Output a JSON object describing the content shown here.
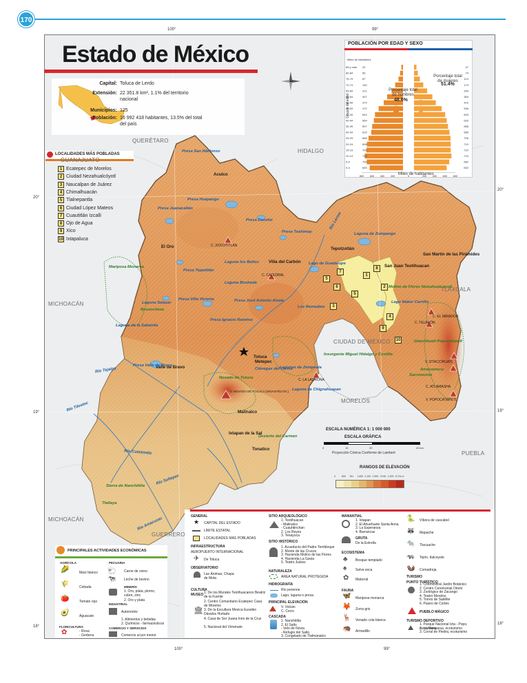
{
  "page": {
    "number": "170"
  },
  "title": "Estado de México",
  "coords": {
    "top": [
      "100°",
      "99°"
    ],
    "bottom": [
      "100°",
      "99°"
    ],
    "left": [
      "20°",
      "19°",
      "18°"
    ],
    "right": [
      "20°",
      "19°",
      "18°"
    ]
  },
  "info": {
    "rows": [
      {
        "k": "Capital:",
        "v": "Toluca de Lerdo"
      },
      {
        "k": "Extensión:",
        "v": "22 351.8 km², 1.1% del territorio nacional"
      },
      {
        "k": "Municipios:",
        "v": "125"
      },
      {
        "k": "Población:",
        "v": "16 992 418 habitantes, 13.5% del total del país"
      }
    ]
  },
  "localidades": {
    "title": "LOCALIDADES MÁS POBLADAS",
    "items": [
      {
        "n": "1",
        "name": "Ecatepec de Morelos"
      },
      {
        "n": "2",
        "name": "Ciudad Nezahualcóyotl"
      },
      {
        "n": "3",
        "name": "Naucalpan de Juárez"
      },
      {
        "n": "4",
        "name": "Chimalhuacán"
      },
      {
        "n": "5",
        "name": "Tlalnepantla"
      },
      {
        "n": "6",
        "name": "Ciudad López Mateos"
      },
      {
        "n": "7",
        "name": "Cuautitlán Izcalli"
      },
      {
        "n": "8",
        "name": "Ojo de Agua"
      },
      {
        "n": "9",
        "name": "Xico"
      },
      {
        "n": "10",
        "name": "Ixtapaluca"
      }
    ]
  },
  "pyramid": {
    "title": "POBLACIÓN POR EDAD Y SEXO",
    "miles_label": "Miles de habitantes",
    "men_label": "Porcentaje total de hombres",
    "men_pct": "48.6%",
    "women_label": "Porcentaje total de mujeres",
    "women_pct": "51.4%",
    "axis_title": "Grupos de edad",
    "axis_ticks": [
      "800",
      "600",
      "400",
      "200",
      "0",
      "200",
      "400",
      "600",
      "800"
    ],
    "groups": [
      {
        "age": "85 y más",
        "m": 32,
        "f": 47
      },
      {
        "age": "80-84",
        "m": 56,
        "f": 74
      },
      {
        "age": "75-79",
        "m": 87,
        "f": 113
      },
      {
        "age": "70-74",
        "m": 152,
        "f": 179
      },
      {
        "age": "65-69",
        "m": 221,
        "f": 254
      },
      {
        "age": "60-64",
        "m": 307,
        "f": 354
      },
      {
        "age": "55-59",
        "m": 374,
        "f": 422
      },
      {
        "age": "50-54",
        "m": 472,
        "f": 536
      },
      {
        "age": "45-49",
        "m": 543,
        "f": 603
      },
      {
        "age": "40-44",
        "m": 564,
        "f": 633
      },
      {
        "age": "35-39",
        "m": 597,
        "f": 658
      },
      {
        "age": "30-34",
        "m": 615,
        "f": 686
      },
      {
        "age": "25-29",
        "m": 668,
        "f": 706
      },
      {
        "age": "20-24",
        "m": 698,
        "f": 710
      },
      {
        "age": "15-19",
        "m": 706,
        "f": 710
      },
      {
        "age": "10-14",
        "m": 740,
        "f": 724
      },
      {
        "age": "5-9",
        "m": 700,
        "f": 682
      },
      {
        "age": "0-4",
        "m": 645,
        "f": 632
      }
    ]
  },
  "states": {
    "guanajuato": "GUANAJUATO",
    "queretaro": "QUERÉTARO",
    "hidalgo": "HIDALGO",
    "tlaxcala": "TLAXCALA",
    "michoacan1": "MICHOACÁN",
    "michoacan2": "MICHOACÁN",
    "cdmx": "CIUDAD DE MÉXICO",
    "morelos": "MORELOS",
    "puebla": "PUEBLA",
    "guerrero": "GUERRERO"
  },
  "cities": {
    "toluca": "Toluca",
    "metepec": "Metepec",
    "el_oro": "El Oro",
    "villa_carbon": "Villa del Carbón",
    "tepotzotlan": "Tepotzotlán",
    "san_juan": "San Juan Teotihuacan",
    "san_martin": "San Martín de las Pirámides",
    "valle_bravo": "Valle de Bravo",
    "malinalco": "Malinalco",
    "ixtapan": "Ixtapan de la Sal",
    "tonatico": "Tonatico",
    "aculco": "Aculco"
  },
  "peaks": {
    "xocotitlan": "C. XOCOTITLÁN",
    "catedral": "C. CATEDRAL",
    "ladrona": "C. LA LADRONA",
    "mirador": "C. EL MIRADOR",
    "telapon": "C. TELAPÓN",
    "iztaccihuatl_v": "V. IZTACCÍHUATL",
    "atlamasha": "C. ATLAMASHA",
    "popocatepetl_v": "V. POPOCATÉPETL",
    "nevado_v": "V. NEVADO DE TOLUCA (XINANTÉCATL)"
  },
  "waters": {
    "ildefonso": "Presa San Ildefonso",
    "huapango": "Presa Huapango",
    "danxho": "Presa Danxhó",
    "taxhimay": "Presa Taxhimay",
    "juanacatlan": "Presa Juanacatlán",
    "banos": "Laguna los Baños",
    "tepetitlan": "Presa Tepetitlán",
    "bosheda": "Laguna Bosheda",
    "brockman": "Presa Brockman",
    "victoria": "Presa Villa Victoria",
    "alzate": "Presa José Antonio Alzate",
    "ramirez": "Presa Ignacio Ramírez",
    "zumpango": "Laguna de Zumpango",
    "guadalupe": "Lago de Guadalupe",
    "remedios": "Los Remedios",
    "texcoco": "Lago Nabor Carrillo",
    "chignahuapan": "Laguna de Chignahuapan",
    "lerma": "Ciénegas del Lerma",
    "zempoala": "Lagunas de Zempoala",
    "valle_bravo_p": "Presa Valle de Bravo",
    "salazar": "Laguna Salazar",
    "sabanita": "Laguna de la Sabanita",
    "rio_lerma": "Río Lerma",
    "rio_tejalpa": "Río Tejalpa",
    "rio_tilostoc": "Río Tilostoc",
    "rio_cutzamala": "Río Cutzamala",
    "rio_sultepec": "Río Sultepec",
    "rio_amacuzac": "Río Amacuzac"
  },
  "protected": {
    "bosencheve": "Bosencheve",
    "izta_popo": "Iztaccíhuatl-Popocatépetl",
    "sacromonte": "Sacromonte",
    "tenancingo": "Tenancingo",
    "insurgente": "Insurgente Miguel Hidalgo y Costilla",
    "monarca": "Mariposa Monarca",
    "desierto": "Desierto del Carmen",
    "nevado": "Nevado de Toluca",
    "amecameca": "Amecameca",
    "molino": "Molino de Flores Netzahualcóyotl",
    "xicotepec": "Sierra de Nanchititla",
    "tetla": "Tlatlaya"
  },
  "scale": {
    "title": "ESCALA NUMÉRICA 1: 1 000 000",
    "graphic": "ESCALA GRÁFICA",
    "ticks": [
      "0",
      "10",
      "20",
      "40 km"
    ],
    "projection": "Proyección Cónica Conforme de Lambert",
    "elev_title": "RANGOS DE ELEVACIÓN",
    "elev_ticks": [
      "0",
      "500",
      "751",
      "1 600",
      "2 100",
      "2 900",
      "3 000",
      "4 200",
      "5 701 m"
    ],
    "elev_colors": [
      "#f6efc8",
      "#efe3a8",
      "#e9d08a",
      "#e5b66a",
      "#e09852",
      "#d9733a",
      "#d85a2a",
      "#c93c20",
      "#b52a18"
    ]
  },
  "legend": {
    "general": "GENERAL",
    "capital": "CAPITAL DEL ESTADO",
    "limite": "LÍMITE ESTATAL",
    "localidades": "LOCALIDADES MÁS POBLADAS",
    "infra": "INFRAESTRUCTURA",
    "aeropuerto": "AEROPUERTO INTERNACIONAL",
    "aeropuerto_v": "De Toluca",
    "observatorio": "OBSERVATORIO",
    "observatorio_v": "Las Ánimas, Chapa de Mota",
    "cultura": "CULTURA",
    "museo": "MUSEO",
    "museos": [
      "1. De los Murales Teotihuacanos Beatriz de la Fuente",
      "2. Centro Comunitario Ecatepec Casa de Morelos",
      "3. De la Escultura Mexica Eusebio Dávalos Hurtado",
      "4. Casa de Sor Juana Inés de la Cruz",
      "5. Nacional del Virreinato"
    ],
    "sitio_arq": "SITIO ARQUEOLÓGICO",
    "sitios_arq": [
      "1. Teotihuacan",
      "- Malinalco",
      "- Cuauhtinchan",
      "2. Los Reyes",
      "3. Tenayuca"
    ],
    "sitio_hist": "SITIO HISTÓRICO",
    "sitios_hist": [
      "1. Acueducto del Padre Tembleque",
      "2. Monte de las Cruces",
      "3. Hacienda Molino de las Flores",
      "4. Hacienda La Gavia",
      "5. Teatro Juárez"
    ],
    "naturaleza": "NATURALEZA",
    "anp": "ÁREA NATURAL PROTEGIDA",
    "hidrografia": "HIDROGRAFÍA",
    "rio": "Río perenne",
    "lago": "Lago, laguna o presa",
    "elevacion": "PRINCIPAL ELEVACIÓN",
    "volcan": "V. Volcán",
    "cerro": "C. Cerro",
    "cascada": "CASCADA",
    "cascadas": [
      "1. Nanchititla",
      "2. El Salto",
      "- Velo de Novia",
      "- Refugio del Salto",
      "3. Congelado de Tlalmanalco"
    ],
    "manantial": "MANANTIAL",
    "manantiales": [
      "1. Ixtapan",
      "2. El Ahuehuete Santa Anna",
      "3. La Esperanza",
      "4. Barrancas"
    ],
    "gruta": "GRUTA",
    "gruta_v": "De la Estrella",
    "ecosistema": "ECOSISTEMA",
    "bosque": "Bosque templado",
    "selva": "Selva seca",
    "matorral": "Matorral",
    "fauna": "FAUNA",
    "fauna_items": [
      "Mariposa monarca",
      "Zorra gris",
      "Venado cola blanca",
      "Armadillo"
    ],
    "fauna_items2": [
      "Víbora de cascabel",
      "Mapache",
      "Tlacuache",
      "Tejón, tlalcoyote",
      "Comadreja"
    ],
    "turismo": "TURISMO",
    "punto": "PUNTO TURÍSTICO",
    "puntos": [
      "1. Cosmovitral Jardín Botánico",
      "2. Centro Ceremonial Otomí",
      "3. Zoológico de Zacango",
      "4. Teatro Morelos",
      "5. Torres de Satélite",
      "6. Paseo de Cortés"
    ],
    "pueblo": "PUEBLO MÁGICO",
    "deportivo": "TURISMO DEPORTIVO",
    "deportivos": [
      "1. Parque Nacional Izta - Popo, ecoturismo",
      "2. La Marquesa, ecoturismo",
      "3. Corral de Piedra, ecoturismo"
    ]
  },
  "actividades": {
    "title": "PRINCIPALES ACTIVIDADES ECONÓMICAS",
    "agricola": "AGRÍCOLA",
    "agricola_items": [
      "Maíz blanco",
      "Cebada",
      "Tomate rojo",
      "Aguacate"
    ],
    "pecuaria": "PECUARIA",
    "pecuaria_items": [
      "Carne de ovino",
      "Leche de bovino"
    ],
    "mineria": "MINERÍA",
    "mineria_items": [
      "1. Oro, plata, plomo, cobre, zinc",
      "2. Oro y plata"
    ],
    "industrial": "INDUSTRIAL",
    "industrial_items": [
      "Automotriz",
      "1. Alimentos y bebidas",
      "2. Químicos - farmacéuticos"
    ],
    "floricultura": "FLORICULTURA",
    "flores": [
      "- Rosa",
      "- Gerbera"
    ],
    "comercio": "COMERCIO Y SERVICIOS",
    "comercio_v": "Comercio al por menor"
  },
  "colors": {
    "accent": "#2aa3d8",
    "red": "#d7262e",
    "blue": "#1f5ea8",
    "male": "#e8892b",
    "female": "#f4a23c",
    "green": "#6aab3a"
  }
}
